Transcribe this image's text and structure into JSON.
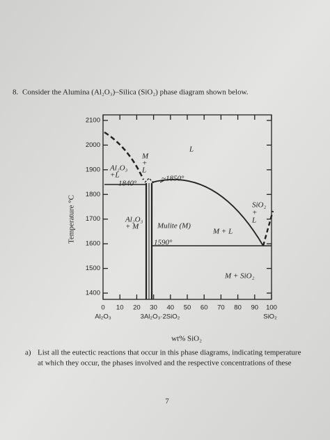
{
  "question": {
    "number": "8.",
    "text": "Consider the Alumina (Al₂O₃)–Silica (SiO₂) phase diagram shown below."
  },
  "diagram": {
    "y_axis_label": "Temperature °C",
    "x_axis_label": "wt% SiO₂",
    "yticks": [
      1400,
      1500,
      1600,
      1700,
      1800,
      1900,
      2000,
      2100
    ],
    "xticks": [
      0,
      10,
      20,
      30,
      40,
      50,
      60,
      70,
      80,
      90,
      100
    ],
    "end_labels": {
      "left": "Al₂O₃",
      "middle": "3Al₂O₃·2SiO₂",
      "right": "SiO₂"
    },
    "regions": [
      {
        "lines": [
          "M",
          "+",
          "L"
        ]
      },
      {
        "lines": [
          "L"
        ]
      },
      {
        "lines": [
          "Al₂O₃",
          "+L"
        ]
      },
      {
        "lines": [
          "1840°"
        ]
      },
      {
        "lines": [
          "~1850°"
        ]
      },
      {
        "lines": [
          "Al₂O₃",
          "+ M"
        ]
      },
      {
        "lines": [
          "Mulite (M)"
        ]
      },
      {
        "lines": [
          "M + L"
        ]
      },
      {
        "lines": [
          "1590°"
        ]
      },
      {
        "lines": [
          "SiO₂",
          "+",
          "L"
        ]
      },
      {
        "lines": [
          "M + SiO₂"
        ]
      }
    ]
  },
  "part_a": {
    "label": "a)",
    "lines": [
      "List all the eutectic reactions that occur in this phase diagrams, indicating temperature",
      "at which they occur, the phases involved and the respective concentrations of these"
    ]
  },
  "page_number": "7"
}
